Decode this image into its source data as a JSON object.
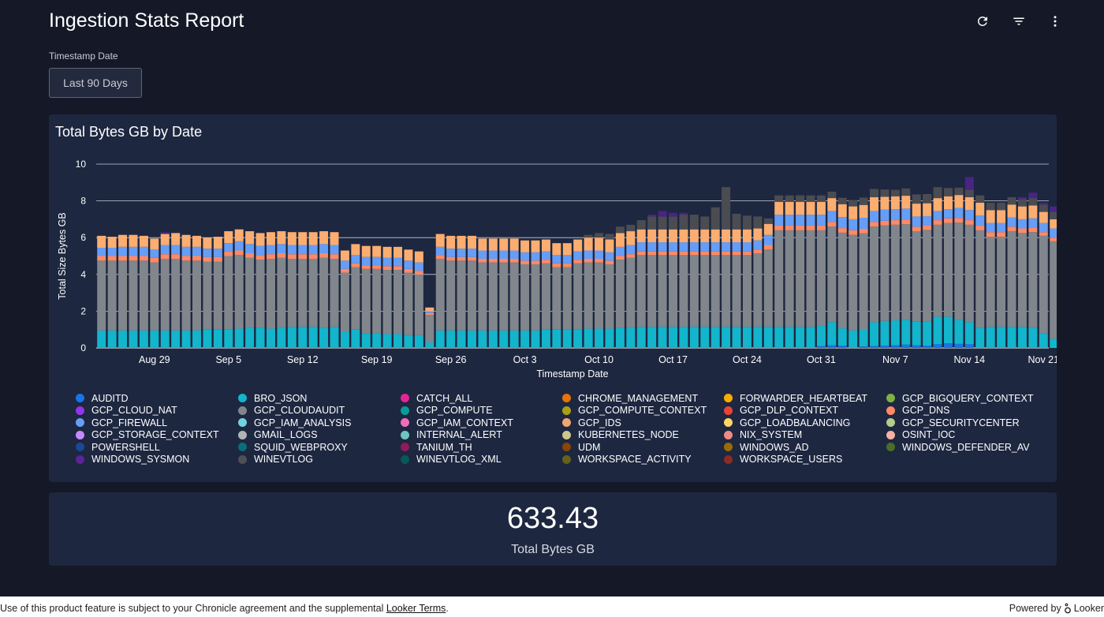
{
  "header": {
    "title": "Ingestion Stats Report",
    "actions": [
      {
        "name": "refresh-icon"
      },
      {
        "name": "filter-icon"
      },
      {
        "name": "more-vert-icon"
      }
    ]
  },
  "filter": {
    "label": "Timestamp Date",
    "value": "Last 90 Days"
  },
  "chart_card": {
    "title": "Total Bytes GB by Date"
  },
  "chart_data": {
    "type": "bar",
    "stacked": true,
    "title": "Total Bytes GB by Date",
    "xlabel": "Timestamp Date",
    "ylabel": "Total Size Bytes GB",
    "ylim": [
      0,
      10
    ],
    "yticks": [
      0,
      2,
      4,
      6,
      8,
      10
    ],
    "grid": true,
    "legend_position": "bottom",
    "x_tick_labels": [
      "Aug 29",
      "Sep 5",
      "Sep 12",
      "Sep 19",
      "Sep 26",
      "Oct 3",
      "Oct 10",
      "Oct 17",
      "Oct 24",
      "Oct 31",
      "Nov 7",
      "Nov 14",
      "Nov 21"
    ],
    "start_date": "2022-08-24",
    "end_date": "2022-11-21",
    "series_order": [
      "AUDITD",
      "BRO_JSON",
      "GCP_CLOUDAUDIT",
      "GCP_DNS",
      "GCP_FIREWALL",
      "GCP_IDS",
      "WINEVTLOG",
      "WINDOWS_SYSMON"
    ],
    "series_colors": {
      "AUDITD": "#1a73e8",
      "BRO_JSON": "#12b5cb",
      "GCP_CLOUDAUDIT": "#80868b",
      "GCP_DNS": "#ff8a65",
      "GCP_FIREWALL": "#669df6",
      "GCP_IDS": "#fcad70",
      "WINEVTLOG": "#4a4c51",
      "WINDOWS_SYSMON": "#4a2485"
    },
    "series": [
      {
        "name": "AUDITD",
        "values": [
          0,
          0,
          0,
          0,
          0,
          0,
          0,
          0,
          0,
          0,
          0,
          0,
          0,
          0,
          0,
          0,
          0,
          0,
          0,
          0,
          0,
          0,
          0,
          0,
          0,
          0,
          0,
          0,
          0,
          0,
          0,
          0,
          0,
          0,
          0,
          0,
          0,
          0,
          0,
          0,
          0,
          0,
          0,
          0,
          0,
          0,
          0,
          0,
          0,
          0,
          0,
          0,
          0,
          0,
          0,
          0,
          0,
          0,
          0,
          0,
          0,
          0,
          0,
          0,
          0,
          0,
          0,
          0,
          0.1,
          0.15,
          0.12,
          0,
          0.08,
          0.1,
          0.12,
          0.15,
          0.18,
          0.15,
          0.12,
          0.2,
          0.25,
          0.22,
          0.2,
          0,
          0,
          0,
          0,
          0,
          0,
          0,
          0,
          0,
          0,
          0,
          0,
          0,
          0,
          0,
          0
        ]
      },
      {
        "name": "BRO_JSON",
        "values": [
          0.95,
          0.95,
          0.95,
          0.95,
          0.95,
          0.95,
          0.95,
          0.95,
          0.95,
          0.95,
          1.0,
          1.0,
          1.0,
          1.05,
          1.1,
          1.1,
          1.05,
          1.1,
          1.15,
          1.15,
          1.15,
          1.1,
          1.15,
          0.9,
          1.0,
          0.8,
          0.8,
          0.75,
          0.75,
          0.7,
          0.7,
          0.3,
          0.95,
          0.95,
          0.95,
          0.95,
          0.95,
          0.95,
          0.95,
          0.95,
          0.95,
          0.95,
          1.0,
          1.0,
          1.0,
          1.0,
          1.05,
          1.05,
          1.05,
          1.1,
          1.1,
          1.15,
          1.15,
          1.15,
          1.15,
          1.15,
          1.15,
          1.15,
          1.15,
          1.15,
          1.15,
          1.15,
          1.15,
          1.15,
          1.15,
          1.15,
          1.15,
          1.15,
          1.1,
          1.25,
          0.95,
          0.95,
          0.95,
          1.3,
          1.35,
          1.35,
          1.35,
          1.3,
          1.3,
          1.5,
          1.45,
          1.3,
          1.2,
          1.1,
          1.15,
          1.15,
          1.15,
          1.15,
          1.1,
          0.8,
          0.5,
          0.6,
          0.5,
          1.4,
          1.45,
          1.2,
          1.25,
          1.1
        ]
      },
      {
        "name": "GCP_CLOUDAUDIT",
        "values": [
          3.8,
          3.8,
          3.8,
          3.8,
          3.8,
          3.7,
          3.9,
          3.9,
          3.8,
          3.8,
          3.7,
          3.7,
          4.0,
          4.0,
          3.8,
          3.7,
          3.8,
          3.8,
          3.7,
          3.7,
          3.7,
          3.8,
          3.7,
          3.2,
          3.4,
          3.5,
          3.5,
          3.5,
          3.5,
          3.4,
          3.3,
          1.5,
          3.9,
          3.8,
          3.8,
          3.8,
          3.7,
          3.7,
          3.7,
          3.7,
          3.6,
          3.6,
          3.6,
          3.4,
          3.4,
          3.6,
          3.6,
          3.6,
          3.5,
          3.7,
          3.8,
          3.9,
          3.9,
          3.9,
          3.9,
          3.9,
          3.9,
          3.9,
          3.9,
          3.9,
          3.9,
          3.9,
          4.0,
          4.2,
          5.25,
          5.25,
          5.25,
          5.25,
          5.2,
          5.2,
          5.2,
          5.2,
          5.2,
          5.2,
          5.2,
          5.2,
          5.2,
          4.9,
          5.0,
          5.0,
          5.1,
          5.3,
          5.3,
          5.3,
          4.9,
          4.9,
          5.2,
          5.1,
          5.2,
          5.3,
          5.3,
          5.3,
          5.3,
          5.5,
          5.8,
          2.3,
          5.4,
          5.5,
          5.6,
          4.2
        ]
      },
      {
        "name": "GCP_DNS",
        "values": [
          0.25,
          0.25,
          0.25,
          0.25,
          0.25,
          0.25,
          0.25,
          0.25,
          0.25,
          0.25,
          0.25,
          0.25,
          0.25,
          0.25,
          0.25,
          0.25,
          0.25,
          0.25,
          0.25,
          0.25,
          0.25,
          0.25,
          0.25,
          0.2,
          0.2,
          0.2,
          0.2,
          0.2,
          0.2,
          0.2,
          0.2,
          0.1,
          0.2,
          0.2,
          0.2,
          0.2,
          0.2,
          0.2,
          0.2,
          0.2,
          0.2,
          0.2,
          0.2,
          0.2,
          0.2,
          0.2,
          0.2,
          0.2,
          0.2,
          0.2,
          0.2,
          0.2,
          0.2,
          0.2,
          0.2,
          0.2,
          0.2,
          0.2,
          0.2,
          0.2,
          0.2,
          0.2,
          0.2,
          0.25,
          0.25,
          0.25,
          0.25,
          0.25,
          0.25,
          0.25,
          0.25,
          0.25,
          0.25,
          0.25,
          0.25,
          0.25,
          0.25,
          0.25,
          0.25,
          0.25,
          0.25,
          0.25,
          0.25,
          0.25,
          0.25,
          0.25,
          0.25,
          0.25,
          0.25,
          0.2,
          0.2,
          0.1,
          0.2,
          0.25,
          0.25,
          0.25,
          0.25,
          0.2
        ]
      },
      {
        "name": "GCP_FIREWALL",
        "values": [
          0.45,
          0.45,
          0.5,
          0.5,
          0.5,
          0.45,
          0.5,
          0.5,
          0.5,
          0.5,
          0.45,
          0.45,
          0.45,
          0.5,
          0.5,
          0.5,
          0.5,
          0.5,
          0.5,
          0.5,
          0.5,
          0.5,
          0.5,
          0.45,
          0.45,
          0.45,
          0.45,
          0.45,
          0.45,
          0.45,
          0.45,
          0.1,
          0.45,
          0.45,
          0.45,
          0.45,
          0.45,
          0.45,
          0.45,
          0.45,
          0.45,
          0.45,
          0.45,
          0.45,
          0.45,
          0.45,
          0.45,
          0.45,
          0.45,
          0.5,
          0.5,
          0.5,
          0.5,
          0.5,
          0.5,
          0.5,
          0.5,
          0.5,
          0.5,
          0.5,
          0.5,
          0.5,
          0.5,
          0.55,
          0.6,
          0.6,
          0.6,
          0.6,
          0.6,
          0.6,
          0.6,
          0.6,
          0.6,
          0.6,
          0.6,
          0.6,
          0.6,
          0.55,
          0.5,
          0.5,
          0.5,
          0.55,
          0.55,
          0.55,
          0.5,
          0.5,
          0.5,
          0.5,
          0.5,
          0.5,
          0.5,
          0.1,
          0.45,
          0.6,
          0.55,
          0.55,
          0.5,
          0.4
        ]
      },
      {
        "name": "GCP_IDS",
        "values": [
          0.65,
          0.6,
          0.65,
          0.65,
          0.6,
          0.6,
          0.6,
          0.65,
          0.65,
          0.6,
          0.6,
          0.65,
          0.65,
          0.65,
          0.7,
          0.7,
          0.7,
          0.7,
          0.7,
          0.7,
          0.7,
          0.7,
          0.7,
          0.55,
          0.6,
          0.6,
          0.6,
          0.6,
          0.6,
          0.6,
          0.6,
          0.2,
          0.7,
          0.7,
          0.7,
          0.7,
          0.65,
          0.65,
          0.65,
          0.65,
          0.65,
          0.65,
          0.65,
          0.65,
          0.65,
          0.65,
          0.7,
          0.7,
          0.7,
          0.75,
          0.75,
          0.7,
          0.7,
          0.7,
          0.7,
          0.7,
          0.7,
          0.7,
          0.7,
          0.7,
          0.7,
          0.7,
          0.65,
          0.6,
          0.7,
          0.7,
          0.7,
          0.7,
          0.7,
          0.7,
          0.7,
          0.7,
          0.7,
          0.75,
          0.7,
          0.7,
          0.7,
          0.7,
          0.7,
          0.7,
          0.7,
          0.7,
          0.7,
          0.7,
          0.7,
          0.7,
          0.7,
          0.7,
          0.7,
          0.6,
          0.5,
          0.3,
          0.6,
          0.7,
          0.7,
          0.7,
          0.7,
          0.5
        ]
      },
      {
        "name": "WINEVTLOG",
        "values": [
          0,
          0,
          0,
          0,
          0,
          0,
          0,
          0,
          0,
          0,
          0,
          0,
          0,
          0,
          0,
          0,
          0,
          0,
          0,
          0,
          0,
          0,
          0,
          0,
          0,
          0,
          0,
          0,
          0,
          0,
          0,
          0,
          0,
          0,
          0,
          0,
          0,
          0,
          0,
          0,
          0,
          0,
          0,
          0,
          0,
          0,
          0.15,
          0.25,
          0.3,
          0.35,
          0.35,
          0.5,
          0.7,
          0.7,
          0.7,
          0.8,
          0.8,
          0.7,
          1.2,
          2.3,
          0.85,
          0.75,
          0.65,
          0.3,
          0.35,
          0.35,
          0.35,
          0.35,
          0.35,
          0.35,
          0.35,
          0.35,
          0.4,
          0.45,
          0.4,
          0.35,
          0.4,
          0.5,
          0.5,
          0.6,
          0.45,
          0.4,
          0.4,
          0.4,
          0.4,
          0.4,
          0.4,
          0.4,
          0.4,
          0.4,
          0.4,
          0.4,
          0.4,
          0.4,
          0.5,
          0.6,
          0.4,
          0.45,
          0.35,
          0.3
        ]
      },
      {
        "name": "WINDOWS_SYSMON",
        "values": [
          0,
          0,
          0,
          0,
          0,
          0,
          0.1,
          0,
          0,
          0,
          0,
          0,
          0,
          0,
          0,
          0,
          0,
          0,
          0,
          0,
          0,
          0,
          0,
          0,
          0,
          0,
          0,
          0,
          0,
          0,
          0,
          0,
          0,
          0,
          0,
          0,
          0,
          0,
          0,
          0,
          0,
          0,
          0,
          0,
          0,
          0,
          0,
          0,
          0,
          0,
          0,
          0,
          0.1,
          0.3,
          0.2,
          0.1,
          0,
          0,
          0,
          0,
          0,
          0,
          0,
          0,
          0,
          0,
          0,
          0,
          0,
          0,
          0,
          0,
          0,
          0,
          0,
          0,
          0,
          0,
          0,
          0,
          0,
          0,
          0.7,
          0,
          0,
          0,
          0,
          0.1,
          0.3,
          0.1,
          0.3,
          0.5,
          0.3,
          0,
          0,
          0,
          0,
          0.4,
          0.3,
          0
        ]
      }
    ]
  },
  "legend": [
    {
      "label": "AUDITD",
      "color": "#1a73e8"
    },
    {
      "label": "BRO_JSON",
      "color": "#12b5cb"
    },
    {
      "label": "CATCH_ALL",
      "color": "#e52592"
    },
    {
      "label": "CHROME_MANAGEMENT",
      "color": "#e8710a"
    },
    {
      "label": "FORWARDER_HEARTBEAT",
      "color": "#f9ab00"
    },
    {
      "label": "GCP_BIGQUERY_CONTEXT",
      "color": "#7cb342"
    },
    {
      "label": "GCP_CLOUD_NAT",
      "color": "#9334e6"
    },
    {
      "label": "GCP_CLOUDAUDIT",
      "color": "#80868b"
    },
    {
      "label": "GCP_COMPUTE",
      "color": "#079c98"
    },
    {
      "label": "GCP_COMPUTE_CONTEXT",
      "color": "#a8a116"
    },
    {
      "label": "GCP_DLP_CONTEXT",
      "color": "#ea4335"
    },
    {
      "label": "GCP_DNS",
      "color": "#ff8a65"
    },
    {
      "label": "GCP_FIREWALL",
      "color": "#669df6"
    },
    {
      "label": "GCP_IAM_ANALYSIS",
      "color": "#71d3e1"
    },
    {
      "label": "GCP_IAM_CONTEXT",
      "color": "#f06eb9"
    },
    {
      "label": "GCP_IDS",
      "color": "#f0a672"
    },
    {
      "label": "GCP_LOADBALANCING",
      "color": "#fdd663"
    },
    {
      "label": "GCP_SECURITYCENTER",
      "color": "#b0cd8b"
    },
    {
      "label": "GCP_STORAGE_CONTEXT",
      "color": "#c58af9"
    },
    {
      "label": "GMAIL_LOGS",
      "color": "#b0b3b8"
    },
    {
      "label": "INTERNAL_ALERT",
      "color": "#6fc6c0"
    },
    {
      "label": "KUBERNETES_NODE",
      "color": "#cdc58a"
    },
    {
      "label": "NIX_SYSTEM",
      "color": "#ee8a85"
    },
    {
      "label": "OSINT_IOC",
      "color": "#f5b1a5"
    },
    {
      "label": "POWERSHELL",
      "color": "#1b4897"
    },
    {
      "label": "SQUID_WEBPROXY",
      "color": "#0a6d7a"
    },
    {
      "label": "TANIUM_TH",
      "color": "#8f1a5c"
    },
    {
      "label": "UDM",
      "color": "#8a4407"
    },
    {
      "label": "WINDOWS_AD",
      "color": "#976b06"
    },
    {
      "label": "WINDOWS_DEFENDER_AV",
      "color": "#4a6e27"
    },
    {
      "label": "WINDOWS_SYSMON",
      "color": "#5b2497"
    },
    {
      "label": "WINEVTLOG",
      "color": "#4d5056"
    },
    {
      "label": "WINEVTLOG_XML",
      "color": "#075958"
    },
    {
      "label": "WORKSPACE_ACTIVITY",
      "color": "#65601a"
    },
    {
      "label": "WORKSPACE_USERS",
      "color": "#8c2b24"
    }
  ],
  "kpi": {
    "value": "633.43",
    "label": "Total Bytes GB"
  },
  "footer": {
    "text": "Use of this product feature is subject to your Chronicle agreement and the supplemental ",
    "link": "Looker Terms",
    "text_end": ".",
    "powered_by": "Powered by",
    "brand": "Looker"
  }
}
